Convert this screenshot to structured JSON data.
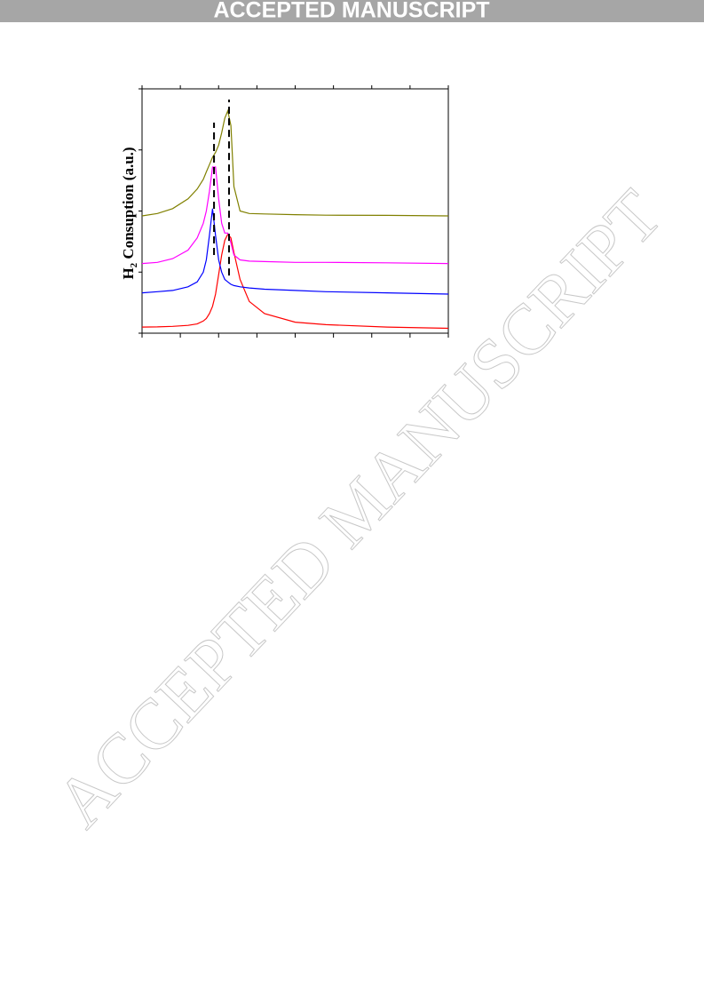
{
  "banner": "ACCEPTED MANUSCRIPT",
  "watermark": "ACCEPTED MANUSCRIPT",
  "chart_data": {
    "type": "line",
    "ylabel": [
      "H",
      "2",
      " Consuption (a.u.)"
    ],
    "x": [
      0,
      5,
      10,
      15,
      18,
      20,
      21,
      22,
      23,
      24,
      25,
      26,
      27,
      28,
      29,
      30,
      32,
      35,
      40,
      50,
      60,
      80,
      100
    ],
    "series": [
      {
        "color": "#ff0000",
        "values": [
          2.5,
          2.6,
          2.8,
          3.2,
          3.8,
          5,
          6,
          8,
          11,
          16,
          24,
          32,
          38,
          40.5,
          39,
          33,
          22,
          13,
          8,
          4.5,
          3.5,
          2.5,
          2
        ]
      },
      {
        "color": "#0000ff",
        "values": [
          16.5,
          17,
          17.5,
          19,
          21,
          25,
          30,
          40,
          51,
          40,
          30,
          25,
          22,
          21,
          20,
          19.5,
          19,
          18.5,
          18,
          17.5,
          17,
          16.5,
          16
        ]
      },
      {
        "color": "#ff00ff",
        "values": [
          28.5,
          29,
          30.5,
          34,
          39,
          45,
          50,
          58,
          68,
          68,
          55,
          45,
          41,
          41,
          37,
          32,
          30,
          29.5,
          29.3,
          29,
          29,
          28.8,
          28.5
        ]
      },
      {
        "color": "#808000",
        "values": [
          48,
          49,
          51,
          55,
          59,
          63,
          66,
          69,
          72,
          74,
          77,
          82,
          88,
          91,
          85,
          60,
          50,
          49,
          48.8,
          48.5,
          48.3,
          48.2,
          48
        ]
      }
    ],
    "vlines": [
      {
        "x": 23.5,
        "y": [
          32,
          86.2
        ]
      },
      {
        "x": 28.4,
        "y": [
          23.6,
          95.6
        ]
      }
    ],
    "xlim": [
      0,
      100
    ],
    "ylim": [
      0,
      100
    ],
    "xticks": [
      0,
      12.5,
      25,
      37.5,
      50,
      62.5,
      75,
      87.5,
      100
    ],
    "yticks": [
      0,
      25,
      50,
      75,
      100
    ]
  }
}
